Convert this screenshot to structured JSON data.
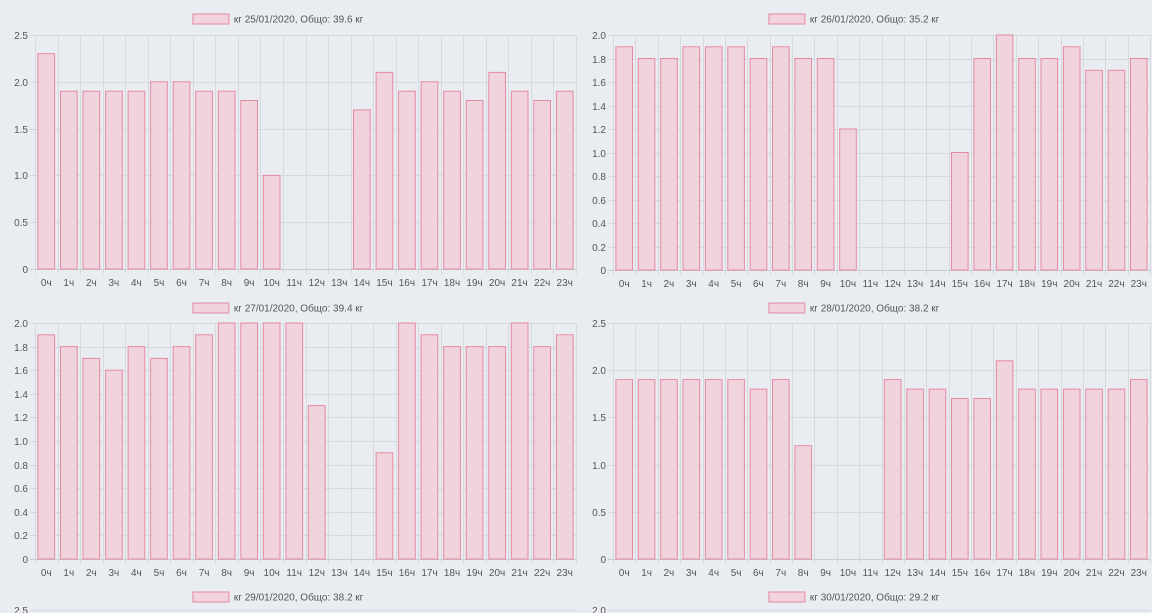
{
  "chart_data": [
    {
      "type": "bar",
      "legend": "кг 25/01/2020, Общо: 39.6 кг",
      "categories": [
        "0ч",
        "1ч",
        "2ч",
        "3ч",
        "4ч",
        "5ч",
        "6ч",
        "7ч",
        "8ч",
        "9ч",
        "10ч",
        "11ч",
        "12ч",
        "13ч",
        "14ч",
        "15ч",
        "16ч",
        "17ч",
        "18ч",
        "19ч",
        "20ч",
        "21ч",
        "22ч",
        "23ч"
      ],
      "values": [
        2.3,
        1.9,
        1.9,
        1.9,
        1.9,
        2.0,
        2.0,
        1.9,
        1.9,
        1.8,
        1.0,
        0,
        0,
        0,
        1.7,
        2.1,
        1.9,
        2.0,
        1.9,
        1.8,
        2.1,
        1.9,
        1.8,
        1.9
      ],
      "ylim": [
        0,
        2.5
      ],
      "yticks": [
        "0",
        "0.5",
        "1.0",
        "1.5",
        "2.0",
        "2.5"
      ],
      "grid": true,
      "legend_position": "top"
    },
    {
      "type": "bar",
      "legend": "кг 26/01/2020, Общо: 35.2 кг",
      "categories": [
        "0ч",
        "1ч",
        "2ч",
        "3ч",
        "4ч",
        "5ч",
        "6ч",
        "7ч",
        "8ч",
        "9ч",
        "10ч",
        "11ч",
        "12ч",
        "13ч",
        "14ч",
        "15ч",
        "16ч",
        "17ч",
        "18ч",
        "19ч",
        "20ч",
        "21ч",
        "22ч",
        "23ч"
      ],
      "values": [
        1.9,
        1.8,
        1.8,
        1.9,
        1.9,
        1.9,
        1.8,
        1.9,
        1.8,
        1.8,
        1.2,
        0,
        0,
        0,
        0,
        1.0,
        1.8,
        2.0,
        1.8,
        1.8,
        1.9,
        1.7,
        1.7,
        1.8
      ],
      "ylim": [
        0,
        2.0
      ],
      "yticks": [
        "0",
        "0.2",
        "0.4",
        "0.6",
        "0.8",
        "1.0",
        "1.2",
        "1.4",
        "1.6",
        "1.8",
        "2.0"
      ],
      "grid": true,
      "legend_position": "top"
    },
    {
      "type": "bar",
      "legend": "кг 27/01/2020, Общо: 39.4 кг",
      "categories": [
        "0ч",
        "1ч",
        "2ч",
        "3ч",
        "4ч",
        "5ч",
        "6ч",
        "7ч",
        "8ч",
        "9ч",
        "10ч",
        "11ч",
        "12ч",
        "13ч",
        "14ч",
        "15ч",
        "16ч",
        "17ч",
        "18ч",
        "19ч",
        "20ч",
        "21ч",
        "22ч",
        "23ч"
      ],
      "values": [
        1.9,
        1.8,
        1.7,
        1.6,
        1.8,
        1.7,
        1.8,
        1.9,
        2.0,
        2.0,
        2.0,
        2.0,
        1.3,
        0,
        0,
        0.9,
        2.0,
        1.9,
        1.8,
        1.8,
        1.8,
        2.0,
        1.8,
        1.9
      ],
      "ylim": [
        0,
        2.0
      ],
      "yticks": [
        "0",
        "0.2",
        "0.4",
        "0.6",
        "0.8",
        "1.0",
        "1.2",
        "1.4",
        "1.6",
        "1.8",
        "2.0"
      ],
      "grid": true,
      "legend_position": "top"
    },
    {
      "type": "bar",
      "legend": "кг 28/01/2020, Общо: 38.2 кг",
      "categories": [
        "0ч",
        "1ч",
        "2ч",
        "3ч",
        "4ч",
        "5ч",
        "6ч",
        "7ч",
        "8ч",
        "9ч",
        "10ч",
        "11ч",
        "12ч",
        "13ч",
        "14ч",
        "15ч",
        "16ч",
        "17ч",
        "18ч",
        "19ч",
        "20ч",
        "21ч",
        "22ч",
        "23ч"
      ],
      "values": [
        1.9,
        1.9,
        1.9,
        1.9,
        1.9,
        1.9,
        1.8,
        1.9,
        1.2,
        0,
        0,
        0,
        1.9,
        1.8,
        1.8,
        1.7,
        1.7,
        2.1,
        1.8,
        1.8,
        1.8,
        1.8,
        1.8,
        1.9
      ],
      "ylim": [
        0,
        2.5
      ],
      "yticks": [
        "0",
        "0.5",
        "1.0",
        "1.5",
        "2.0",
        "2.5"
      ],
      "grid": true,
      "legend_position": "top"
    },
    {
      "type": "bar",
      "legend": "кг 29/01/2020, Общо: 38.2 кг",
      "categories": [],
      "values": [],
      "ylim": [
        0,
        2.5
      ],
      "yticks": [
        "2.5"
      ],
      "grid": true,
      "legend_position": "top"
    },
    {
      "type": "bar",
      "legend": "кг 30/01/2020, Общо: 29.2 кг",
      "categories": [],
      "values": [],
      "ylim": [
        0,
        2.0
      ],
      "yticks": [
        "2.0"
      ],
      "grid": true,
      "legend_position": "top"
    }
  ]
}
